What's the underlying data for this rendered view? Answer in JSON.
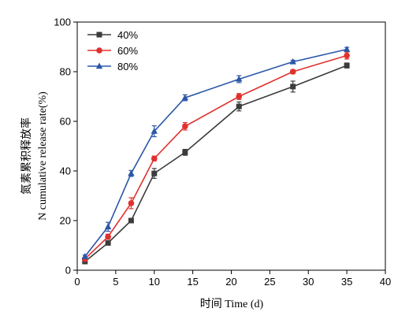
{
  "chart_data": {
    "type": "line",
    "xlabel": "时间 Time (d)",
    "ylabel_cn": "氮素累积释放率",
    "ylabel_en": "N cumulative release rate(%)",
    "xlim": [
      0,
      40
    ],
    "ylim": [
      0,
      100
    ],
    "xticks": [
      0,
      5,
      10,
      15,
      20,
      25,
      30,
      35,
      40
    ],
    "yticks": [
      0,
      20,
      40,
      60,
      80,
      100
    ],
    "grid": false,
    "legend_position": "top-left",
    "x": [
      1,
      4,
      7,
      10,
      14,
      21,
      28,
      35
    ],
    "series": [
      {
        "name": "40%",
        "color": "#3c3c3c",
        "marker": "square",
        "values": [
          3.5,
          11,
          20,
          39,
          47.5,
          66,
          74,
          82.5
        ],
        "errors": [
          0.5,
          0.8,
          0.8,
          2.0,
          1.2,
          1.8,
          2.2,
          1.0
        ]
      },
      {
        "name": "60%",
        "color": "#e0312e",
        "marker": "circle",
        "values": [
          4.5,
          13.5,
          27,
          45,
          58,
          70,
          80,
          86.5
        ],
        "errors": [
          0.6,
          1.0,
          2.2,
          1.0,
          1.5,
          1.2,
          0.8,
          1.4
        ]
      },
      {
        "name": "80%",
        "color": "#2a56a8",
        "marker": "triangle",
        "values": [
          5.5,
          17.5,
          39,
          56,
          69.5,
          77,
          84,
          89
        ],
        "errors": [
          0.6,
          1.8,
          1.2,
          2.2,
          1.2,
          1.4,
          0.6,
          0.8
        ]
      }
    ]
  }
}
